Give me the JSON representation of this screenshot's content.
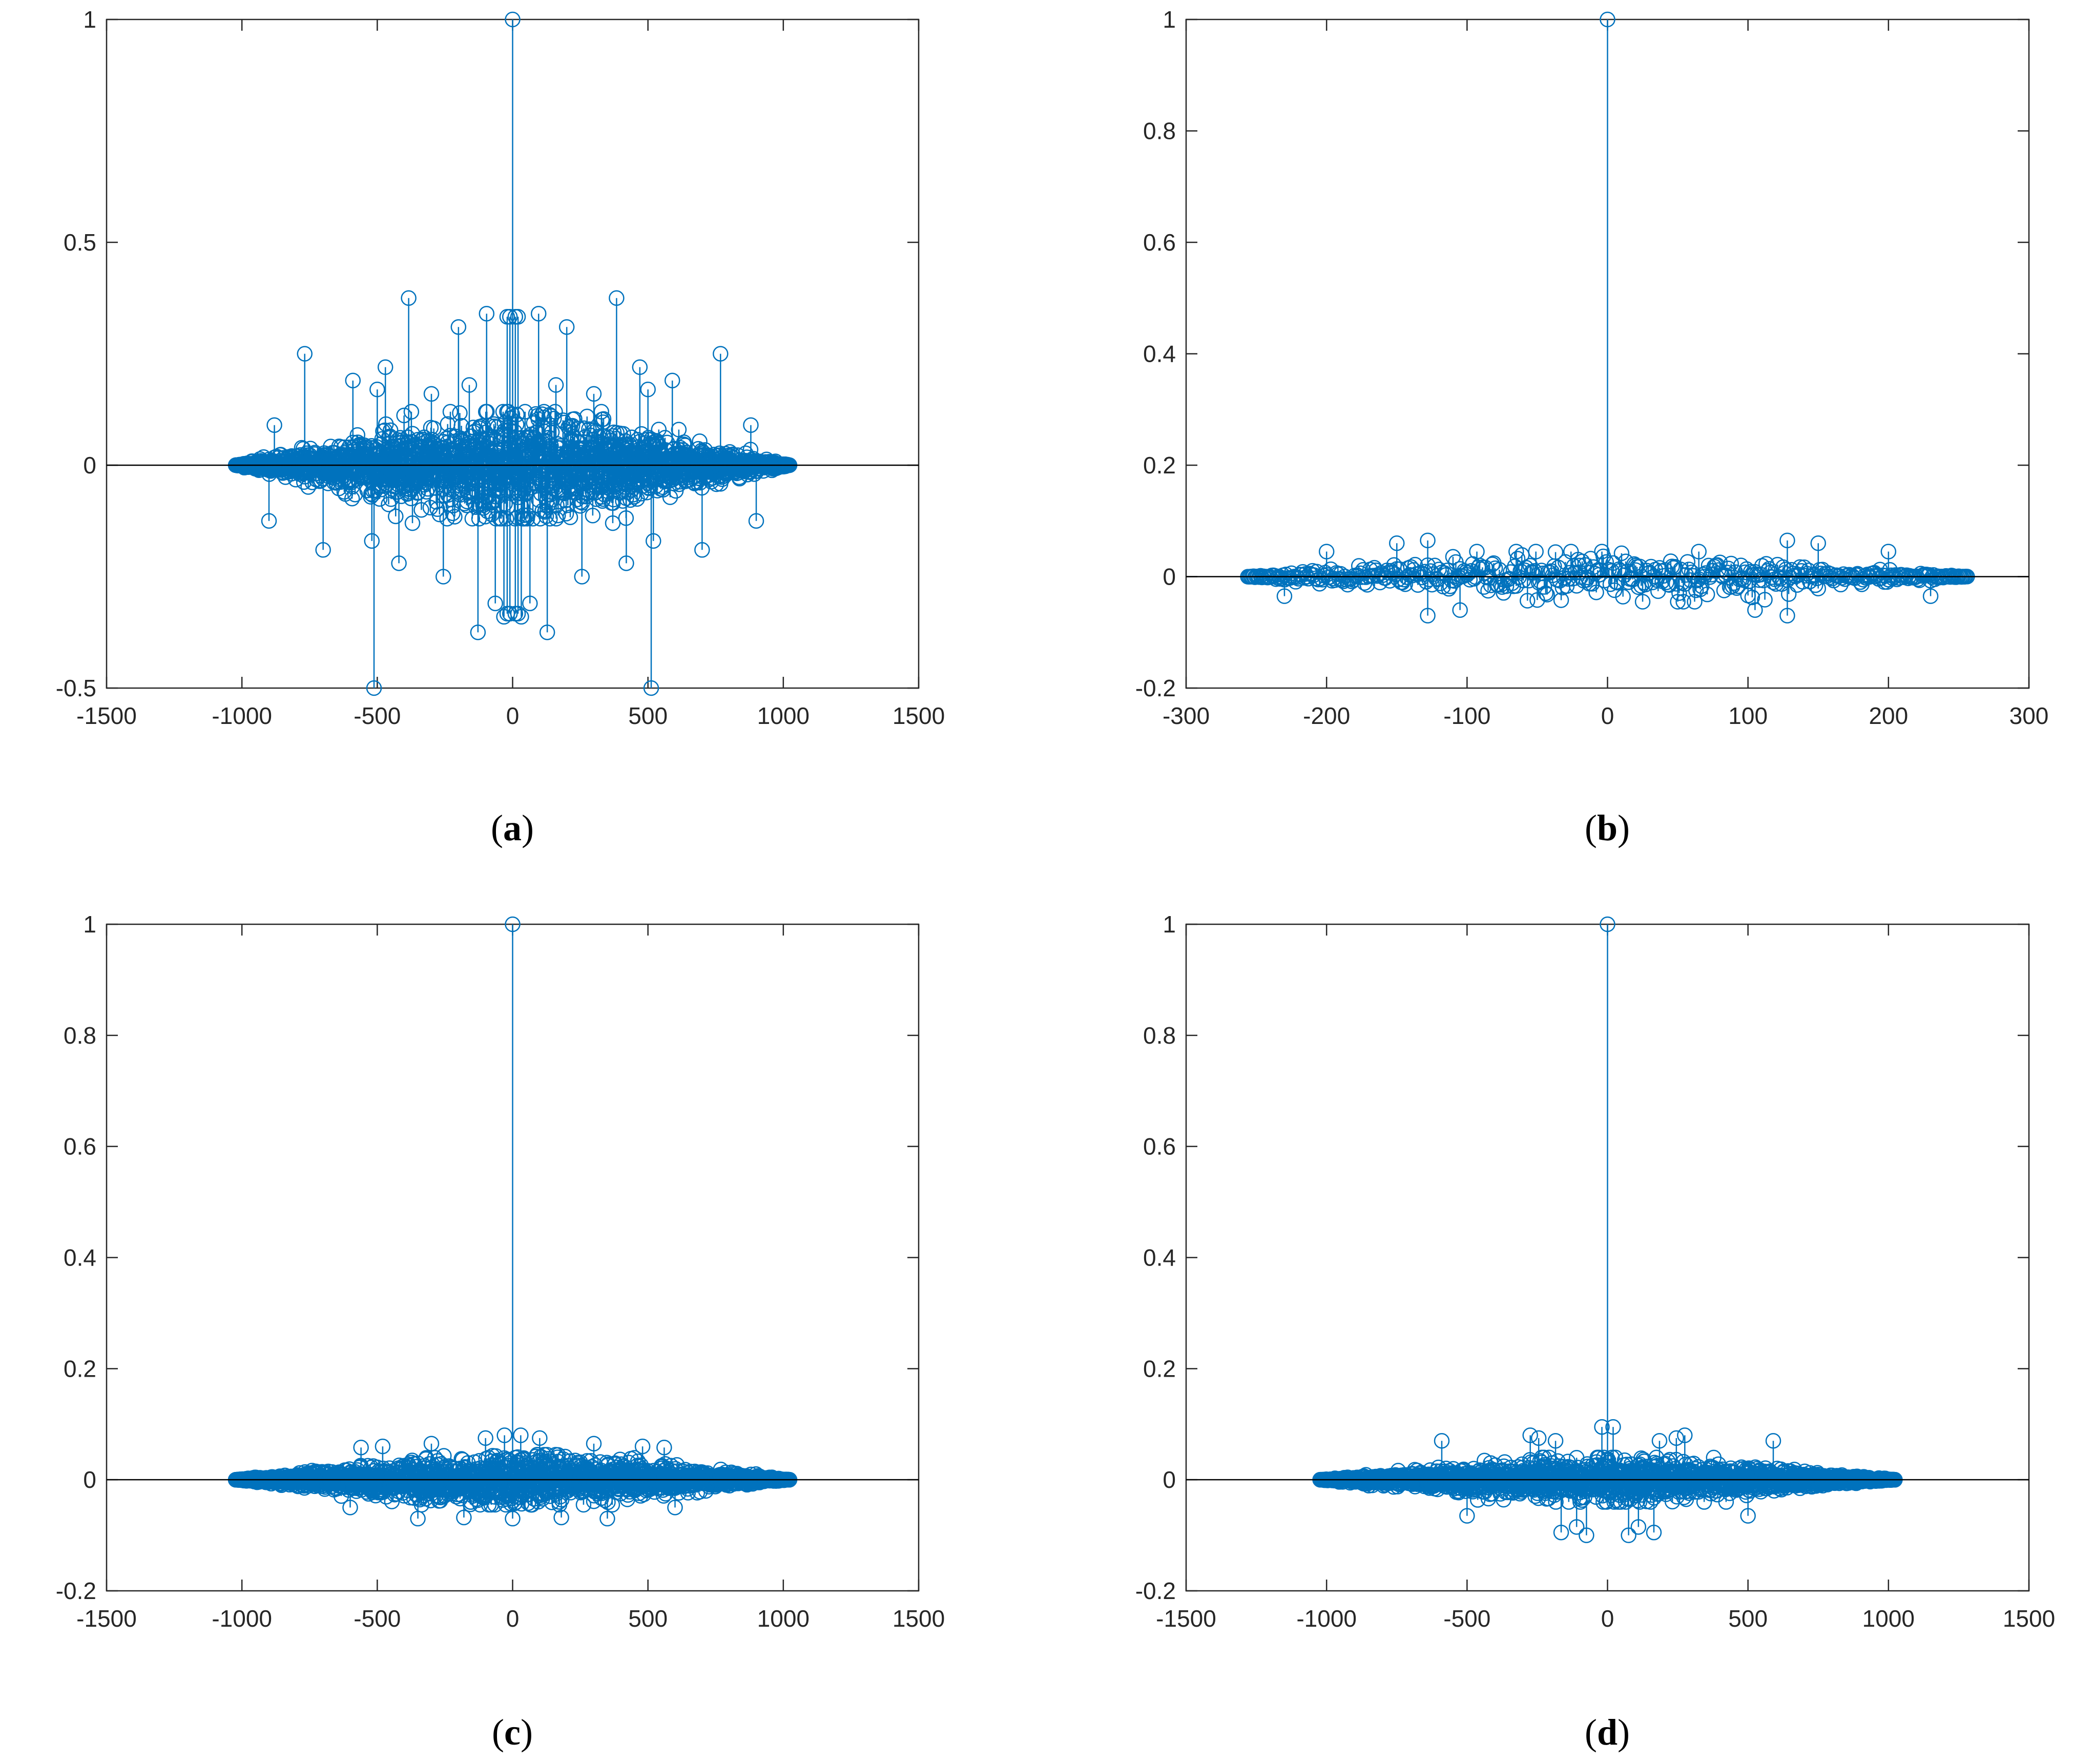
{
  "figure": {
    "colors": {
      "series": "#0072bd",
      "axes": "#262626",
      "baseline": "#000000",
      "background": "#ffffff"
    }
  },
  "chart_data": [
    {
      "id": "a",
      "type": "stem",
      "label": "a",
      "xlim": [
        -1500,
        1500
      ],
      "ylim": [
        -0.5,
        1
      ],
      "xticks": [
        -1500,
        -1000,
        -500,
        0,
        500,
        1000,
        1500
      ],
      "yticks": [
        -0.5,
        0,
        0.5,
        1
      ],
      "xtick_labels": [
        "-1500",
        "-1000",
        "-500",
        "0",
        "500",
        "1000",
        "1500"
      ],
      "ytick_labels": [
        "-0.5",
        "0",
        "0.5",
        "1"
      ],
      "lag_range": [
        -1023,
        1023
      ],
      "envelope": 0.12,
      "noise_seed": 11,
      "dense_cluster": true,
      "highlight_points": [
        [
          0,
          1
        ],
        [
          -512,
          -0.5
        ],
        [
          512,
          -0.5
        ],
        [
          -384,
          0.375
        ],
        [
          384,
          0.375
        ],
        [
          -768,
          0.25
        ],
        [
          768,
          0.25
        ],
        [
          -256,
          -0.25
        ],
        [
          256,
          -0.25
        ],
        [
          -128,
          -0.375
        ],
        [
          128,
          -0.375
        ],
        [
          -96,
          0.34
        ],
        [
          96,
          0.34
        ],
        [
          -10,
          0.333
        ],
        [
          10,
          0.333
        ],
        [
          -20,
          0.333
        ],
        [
          20,
          0.333
        ],
        [
          -10,
          -0.333
        ],
        [
          10,
          -0.333
        ],
        [
          -20,
          -0.333
        ],
        [
          20,
          -0.333
        ],
        [
          -64,
          -0.31
        ],
        [
          64,
          -0.31
        ],
        [
          -32,
          -0.34
        ],
        [
          32,
          -0.34
        ],
        [
          -200,
          0.31
        ],
        [
          200,
          0.31
        ],
        [
          -470,
          0.22
        ],
        [
          470,
          0.22
        ],
        [
          -590,
          0.19
        ],
        [
          590,
          0.19
        ],
        [
          -880,
          0.09
        ],
        [
          880,
          0.09
        ],
        [
          -500,
          0.17
        ],
        [
          500,
          0.17
        ],
        [
          -520,
          -0.17
        ],
        [
          520,
          -0.17
        ],
        [
          -900,
          -0.125
        ],
        [
          900,
          -0.125
        ],
        [
          -700,
          -0.19
        ],
        [
          700,
          -0.19
        ],
        [
          -420,
          -0.22
        ],
        [
          420,
          -0.22
        ],
        [
          -370,
          -0.13
        ],
        [
          370,
          -0.13
        ],
        [
          -300,
          0.16
        ],
        [
          300,
          0.16
        ],
        [
          -160,
          0.18
        ],
        [
          160,
          0.18
        ]
      ]
    },
    {
      "id": "b",
      "type": "stem",
      "label": "b",
      "xlim": [
        -300,
        300
      ],
      "ylim": [
        -0.2,
        1
      ],
      "xticks": [
        -300,
        -200,
        -100,
        0,
        100,
        200,
        300
      ],
      "yticks": [
        -0.2,
        0,
        0.2,
        0.4,
        0.6,
        0.8,
        1
      ],
      "xtick_labels": [
        "-300",
        "-200",
        "-100",
        "0",
        "100",
        "200",
        "300"
      ],
      "ytick_labels": [
        "-0.2",
        "0",
        "0.2",
        "0.4",
        "0.6",
        "0.8",
        "1"
      ],
      "lag_range": [
        -256,
        256
      ],
      "envelope": 0.045,
      "noise_seed": 23,
      "dense_cluster": false,
      "highlight_points": [
        [
          0,
          1
        ],
        [
          -128,
          0.065
        ],
        [
          128,
          0.065
        ],
        [
          -128,
          -0.07
        ],
        [
          128,
          -0.07
        ],
        [
          -150,
          0.06
        ],
        [
          150,
          0.06
        ],
        [
          -105,
          -0.06
        ],
        [
          105,
          -0.06
        ],
        [
          -200,
          0.045
        ],
        [
          200,
          0.045
        ],
        [
          -65,
          0.045
        ],
        [
          65,
          0.045
        ],
        [
          -230,
          -0.035
        ],
        [
          230,
          -0.035
        ],
        [
          -20,
          0.02
        ],
        [
          20,
          0.02
        ]
      ]
    },
    {
      "id": "c",
      "type": "stem",
      "label": "c",
      "xlim": [
        -1500,
        1500
      ],
      "ylim": [
        -0.2,
        1
      ],
      "xticks": [
        -1500,
        -1000,
        -500,
        0,
        500,
        1000,
        1500
      ],
      "yticks": [
        -0.2,
        0,
        0.2,
        0.4,
        0.6,
        0.8,
        1
      ],
      "xtick_labels": [
        "-1500",
        "-1000",
        "-500",
        "0",
        "500",
        "1000",
        "1500"
      ],
      "ytick_labels": [
        "-0.2",
        "0",
        "0.2",
        "0.4",
        "0.6",
        "0.8",
        "1"
      ],
      "lag_range": [
        -1023,
        1023
      ],
      "envelope": 0.045,
      "noise_seed": 37,
      "dense_cluster": true,
      "highlight_points": [
        [
          0,
          1
        ],
        [
          -30,
          0.08
        ],
        [
          30,
          0.08
        ],
        [
          -100,
          0.075
        ],
        [
          100,
          0.075
        ],
        [
          -300,
          0.065
        ],
        [
          300,
          0.065
        ],
        [
          -480,
          0.06
        ],
        [
          480,
          0.06
        ],
        [
          -560,
          0.058
        ],
        [
          560,
          0.058
        ],
        [
          0,
          -0.07
        ],
        [
          -350,
          -0.07
        ],
        [
          350,
          -0.07
        ],
        [
          -180,
          -0.068
        ],
        [
          180,
          -0.068
        ],
        [
          -600,
          -0.05
        ],
        [
          600,
          -0.05
        ]
      ]
    },
    {
      "id": "d",
      "type": "stem",
      "label": "d",
      "xlim": [
        -1500,
        1500
      ],
      "ylim": [
        -0.2,
        1
      ],
      "xticks": [
        -1500,
        -1000,
        -500,
        0,
        500,
        1000,
        1500
      ],
      "yticks": [
        -0.2,
        0,
        0.2,
        0.4,
        0.6,
        0.8,
        1
      ],
      "xtick_labels": [
        "-1500",
        "-1000",
        "-500",
        "0",
        "500",
        "1000",
        "1500"
      ],
      "ytick_labels": [
        "-0.2",
        "0",
        "0.2",
        "0.4",
        "0.6",
        "0.8",
        "1"
      ],
      "lag_range": [
        -1023,
        1023
      ],
      "envelope": 0.04,
      "noise_seed": 53,
      "dense_cluster": true,
      "highlight_points": [
        [
          0,
          1
        ],
        [
          -20,
          0.095
        ],
        [
          20,
          0.095
        ],
        [
          -75,
          -0.1
        ],
        [
          75,
          -0.1
        ],
        [
          -165,
          -0.095
        ],
        [
          165,
          -0.095
        ],
        [
          -275,
          0.08
        ],
        [
          275,
          0.08
        ],
        [
          -245,
          0.075
        ],
        [
          245,
          0.075
        ],
        [
          -590,
          0.07
        ],
        [
          590,
          0.07
        ],
        [
          -500,
          -0.065
        ],
        [
          500,
          -0.065
        ],
        [
          -110,
          -0.085
        ],
        [
          110,
          -0.085
        ],
        [
          -185,
          0.07
        ],
        [
          185,
          0.07
        ]
      ]
    }
  ]
}
